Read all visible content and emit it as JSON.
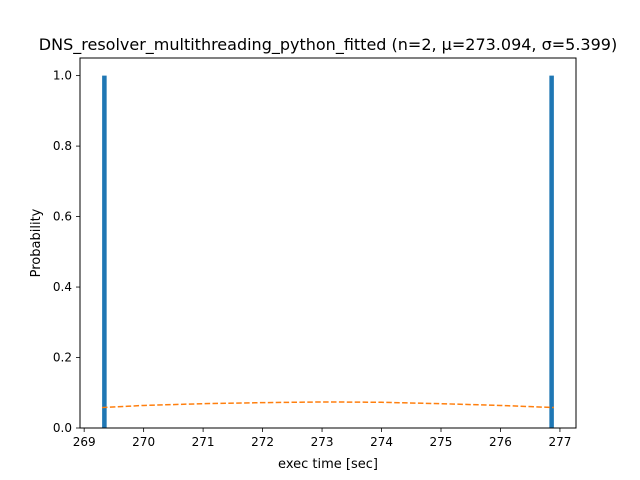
{
  "chart_data": {
    "type": "bar",
    "title": "DNS_resolver_multithreading_python_fitted (n=2, μ=273.094, σ=5.399)",
    "xlabel": "exec time [sec]",
    "ylabel": "Probability",
    "xlim": [
      268.93,
      277.27
    ],
    "ylim": [
      0,
      1.05
    ],
    "xticks": [
      "269",
      "270",
      "271",
      "272",
      "273",
      "274",
      "275",
      "276",
      "277"
    ],
    "yticks": [
      "0.0",
      "0.2",
      "0.4",
      "0.6",
      "0.8",
      "1.0"
    ],
    "grid": false,
    "series": [
      {
        "type": "bar",
        "bar_width": 0.076,
        "x": [
          269.34,
          276.86
        ],
        "values": [
          1.0,
          1.0
        ],
        "color": "#1f77b4"
      },
      {
        "type": "line",
        "style": "dashed",
        "color": "#ff7f0e",
        "x": [
          269.3,
          270.0,
          271.0,
          272.0,
          273.0,
          273.1,
          274.0,
          275.0,
          276.0,
          276.9
        ],
        "values": [
          0.058,
          0.064,
          0.069,
          0.072,
          0.0739,
          0.0739,
          0.073,
          0.069,
          0.064,
          0.058
        ]
      }
    ]
  }
}
